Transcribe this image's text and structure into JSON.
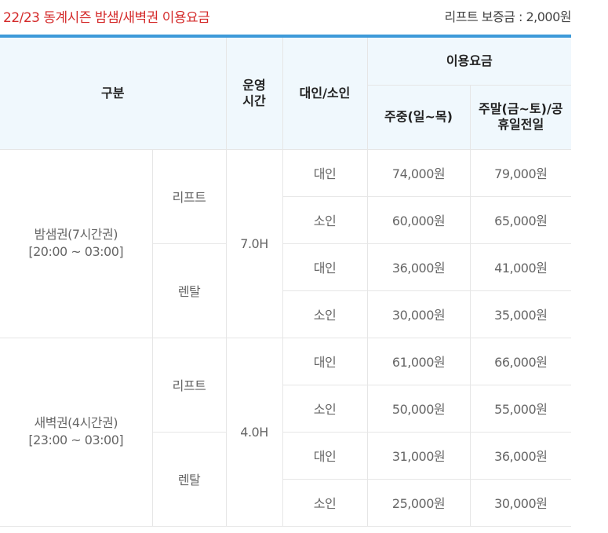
{
  "header": {
    "title": "22/23 동계시즌 밤샘/새벽권 이용요금",
    "deposit": "리프트 보증금 : 2,000원"
  },
  "table": {
    "headers": {
      "category": "구분",
      "hours": "운영 시간",
      "age": "대인/소인",
      "fee": "이용요금",
      "weekday": "주중(일~목)",
      "weekend": "주말(금~토)/공휴일전일"
    },
    "groups": [
      {
        "name": "밤샘권(7시간권)",
        "time": "[20:00 ~ 03:00]",
        "hours": "7.0H",
        "types": [
          {
            "type": "리프트",
            "rows": [
              {
                "age": "대인",
                "weekday": "74,000원",
                "weekend": "79,000원"
              },
              {
                "age": "소인",
                "weekday": "60,000원",
                "weekend": "65,000원"
              }
            ]
          },
          {
            "type": "렌탈",
            "rows": [
              {
                "age": "대인",
                "weekday": "36,000원",
                "weekend": "41,000원"
              },
              {
                "age": "소인",
                "weekday": "30,000원",
                "weekend": "35,000원"
              }
            ]
          }
        ]
      },
      {
        "name": "새벽권(4시간권)",
        "time": "[23:00 ~ 03:00]",
        "hours": "4.0H",
        "types": [
          {
            "type": "리프트",
            "rows": [
              {
                "age": "대인",
                "weekday": "61,000원",
                "weekend": "66,000원"
              },
              {
                "age": "소인",
                "weekday": "50,000원",
                "weekend": "55,000원"
              }
            ]
          },
          {
            "type": "렌탈",
            "rows": [
              {
                "age": "대인",
                "weekday": "31,000원",
                "weekend": "36,000원"
              },
              {
                "age": "소인",
                "weekday": "25,000원",
                "weekend": "30,000원"
              }
            ]
          }
        ]
      }
    ]
  }
}
